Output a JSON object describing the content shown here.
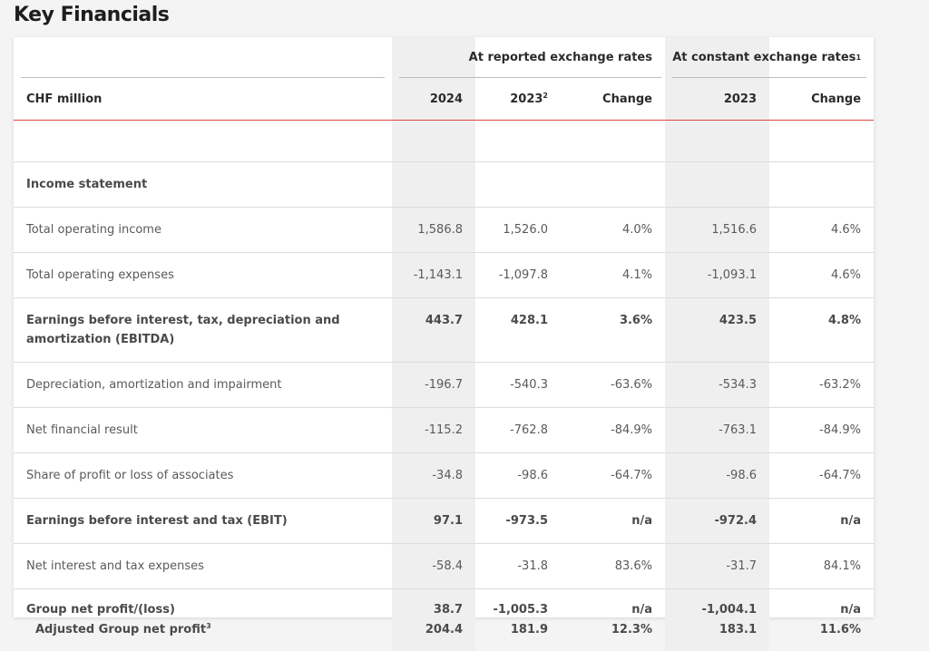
{
  "title": "Key Financials",
  "group_headers": {
    "reported": "At reported exchange rates",
    "constant": "At constant exchange rates",
    "constant_note": "1"
  },
  "columns": {
    "label": "CHF million",
    "y2024": "2024",
    "y2023": "2023",
    "y2023_note": "2",
    "change": "Change",
    "cer2023": "2023",
    "cer_change": "Change"
  },
  "section_title": "Income statement",
  "rows": [
    {
      "label": "Total operating income",
      "v2024": "1,586.8",
      "v2023": "1,526.0",
      "chg": "4.0%",
      "cer2023": "1,516.6",
      "cerchg": "4.6%"
    },
    {
      "label": "Total operating expenses",
      "v2024": "-1,143.1",
      "v2023": "-1,097.8",
      "chg": "4.1%",
      "cer2023": "-1,093.1",
      "cerchg": "4.6%"
    },
    {
      "label_line1": "Earnings before interest, tax, depreciation and",
      "label_line2": "amortization (EBITDA)",
      "v2024": "443.7",
      "v2023": "428.1",
      "chg": "3.6%",
      "cer2023": "423.5",
      "cerchg": "4.8%"
    },
    {
      "label": "Depreciation, amortization and impairment",
      "v2024": "-196.7",
      "v2023": "-540.3",
      "chg": "-63.6%",
      "cer2023": "-534.3",
      "cerchg": "-63.2%"
    },
    {
      "label": "Net financial result",
      "v2024": "-115.2",
      "v2023": "-762.8",
      "chg": "-84.9%",
      "cer2023": "-763.1",
      "cerchg": "-84.9%"
    },
    {
      "label": "Share of profit or loss of associates",
      "v2024": "-34.8",
      "v2023": "-98.6",
      "chg": "-64.7%",
      "cer2023": "-98.6",
      "cerchg": "-64.7%"
    },
    {
      "label": "Earnings before interest and tax (EBIT)",
      "v2024": "97.1",
      "v2023": "-973.5",
      "chg": "n/a",
      "cer2023": "-972.4",
      "cerchg": "n/a"
    },
    {
      "label": "Net interest and tax expenses",
      "v2024": "-58.4",
      "v2023": "-31.8",
      "chg": "83.6%",
      "cer2023": "-31.7",
      "cerchg": "84.1%"
    },
    {
      "label": "Group net profit/(loss)",
      "v2024": "38.7",
      "v2023": "-1,005.3",
      "chg": "n/a",
      "cer2023": "-1,004.1",
      "cerchg": "n/a"
    },
    {
      "label": "Adjusted Group net profit",
      "label_note": "3",
      "v2024": "204.4",
      "v2023": "181.9",
      "chg": "12.3%",
      "cer2023": "183.1",
      "cerchg": "11.6%"
    }
  ]
}
